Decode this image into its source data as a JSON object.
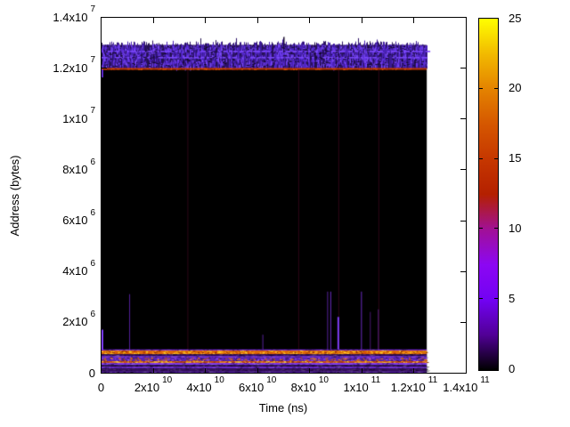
{
  "chart_data": {
    "type": "heatmap",
    "title": "",
    "xlabel": "Time (ns)",
    "ylabel": "Address (bytes)",
    "x_range": [
      0,
      140000000000.0
    ],
    "y_range": [
      0,
      14000000.0
    ],
    "grid": false,
    "x_ticks": [
      {
        "v": 0,
        "base": "0",
        "exp": ""
      },
      {
        "v": 20000000000.0,
        "base": "2x10",
        "exp": "10"
      },
      {
        "v": 40000000000.0,
        "base": "4x10",
        "exp": "10"
      },
      {
        "v": 60000000000.0,
        "base": "6x10",
        "exp": "10"
      },
      {
        "v": 80000000000.0,
        "base": "8x10",
        "exp": "10"
      },
      {
        "v": 100000000000.0,
        "base": "1x10",
        "exp": "11"
      },
      {
        "v": 120000000000.0,
        "base": "1.2x10",
        "exp": "11"
      },
      {
        "v": 140000000000.0,
        "base": "1.4x10",
        "exp": "11"
      }
    ],
    "y_ticks": [
      {
        "v": 0,
        "base": "0",
        "exp": ""
      },
      {
        "v": 2000000.0,
        "base": "2x10",
        "exp": "6"
      },
      {
        "v": 4000000.0,
        "base": "4x10",
        "exp": "6"
      },
      {
        "v": 6000000.0,
        "base": "6x10",
        "exp": "6"
      },
      {
        "v": 8000000.0,
        "base": "8x10",
        "exp": "6"
      },
      {
        "v": 10000000.0,
        "base": "1x10",
        "exp": "7"
      },
      {
        "v": 12000000.0,
        "base": "1.2x10",
        "exp": "7"
      },
      {
        "v": 14000000.0,
        "base": "1.4x10",
        "exp": "7"
      }
    ],
    "colorbar": {
      "range": [
        0,
        25
      ],
      "ticks": [
        {
          "v": 0,
          "label": "0"
        },
        {
          "v": 5,
          "label": "5"
        },
        {
          "v": 10,
          "label": "10"
        },
        {
          "v": 15,
          "label": "15"
        },
        {
          "v": 20,
          "label": "20"
        },
        {
          "v": 25,
          "label": "25"
        }
      ],
      "palette_stops": [
        [
          "0%",
          "#000000"
        ],
        [
          "10%",
          "#510096"
        ],
        [
          "20%",
          "#7202f3"
        ],
        [
          "30%",
          "#8c07f3"
        ],
        [
          "40%",
          "#a11096"
        ],
        [
          "50%",
          "#b42000"
        ],
        [
          "60%",
          "#c63700"
        ],
        [
          "70%",
          "#d55700"
        ],
        [
          "80%",
          "#e48300"
        ],
        [
          "90%",
          "#f2ba00"
        ],
        [
          "100%",
          "#ffff00"
        ]
      ]
    },
    "heatmap": {
      "t_end": 125000000000.0,
      "background": "#000000",
      "empty_color": "#ffffff",
      "top_band": {
        "addr_lo": 12000000.0,
        "addr_hi": 13000000.0,
        "jitter_top_max": 13250000.0,
        "base": "#2a1058",
        "column_shades": [
          "#2c1266",
          "#3b1a94",
          "#4a22b8",
          "#241050"
        ],
        "bright_specks": [
          "#6b38ee",
          "#8150ff",
          "#5a2cd8"
        ],
        "dash_row_color": "#7b46fa",
        "dark_speck": "#120628"
      },
      "dark_streaks": [
        {
          "t": 70000000000.0,
          "addr_top": 13250000.0,
          "color": "#10061e"
        }
      ],
      "boundary_line": {
        "addr": 12000000.0,
        "color": "#c43a00",
        "flecks": [
          "#e25600",
          "#a82e00"
        ]
      },
      "full_vlines": {
        "color": "#2e0617",
        "t": [
          33000000000.0,
          75600000000.0,
          91000000000.0,
          106400000000.0
        ]
      },
      "spikes": [
        {
          "t": 340000000.0,
          "addr_top": 1700000.0,
          "w": 2,
          "color": "#7c3cf2"
        },
        {
          "t": 10800000000.0,
          "addr_top": 3100000.0,
          "w": 1,
          "color": "#56209a"
        },
        {
          "t": 62000000000.0,
          "addr_top": 1500000.0,
          "w": 1,
          "color": "#56209a"
        },
        {
          "t": 86900000000.0,
          "addr_top": 3200000.0,
          "w": 1,
          "color": "#56209a"
        },
        {
          "t": 88100000000.0,
          "addr_top": 3200000.0,
          "w": 1,
          "color": "#6a2cc0"
        },
        {
          "t": 91000000000.0,
          "addr_top": 2200000.0,
          "w": 2,
          "color": "#7c3cf2"
        },
        {
          "t": 99900000000.0,
          "addr_top": 3200000.0,
          "w": 1,
          "color": "#6a2cc0"
        },
        {
          "t": 103300000000.0,
          "addr_top": 2400000.0,
          "w": 1,
          "color": "#46156e"
        },
        {
          "t": 106400000000.0,
          "addr_top": 2500000.0,
          "w": 1,
          "color": "#56207e"
        }
      ],
      "bottom_stripes": [
        {
          "hi": 920000.0,
          "lo": 875000.0,
          "color": "#7a2ade",
          "tex": "solid"
        },
        {
          "hi": 875000.0,
          "lo": 730000.0,
          "color": "#e06a0a",
          "tex": "orange"
        },
        {
          "hi": 730000.0,
          "lo": 660000.0,
          "color": "#2c0a5e",
          "tex": "solid"
        },
        {
          "hi": 660000.0,
          "lo": 600000.0,
          "color": "#7c32e8",
          "tex": "solid"
        },
        {
          "hi": 600000.0,
          "lo": 455000.0,
          "color": "#5a24b4",
          "tex": "mixed"
        },
        {
          "hi": 455000.0,
          "lo": 390000.0,
          "color": "#d2500a",
          "tex": "orange"
        },
        {
          "hi": 390000.0,
          "lo": 295000.0,
          "color": "#7c36ec",
          "tex": "solid"
        },
        {
          "hi": 295000.0,
          "lo": 245000.0,
          "color": "#1e0538",
          "tex": "solid"
        },
        {
          "hi": 245000.0,
          "lo": 160000.0,
          "color": "#6628ca",
          "tex": "solid"
        },
        {
          "hi": 160000.0,
          "lo": 55000.0,
          "color": "#360f5e",
          "tex": "solid"
        },
        {
          "hi": 55000.0,
          "lo": 0,
          "color": "#5520a2",
          "tex": "solid"
        }
      ]
    }
  }
}
